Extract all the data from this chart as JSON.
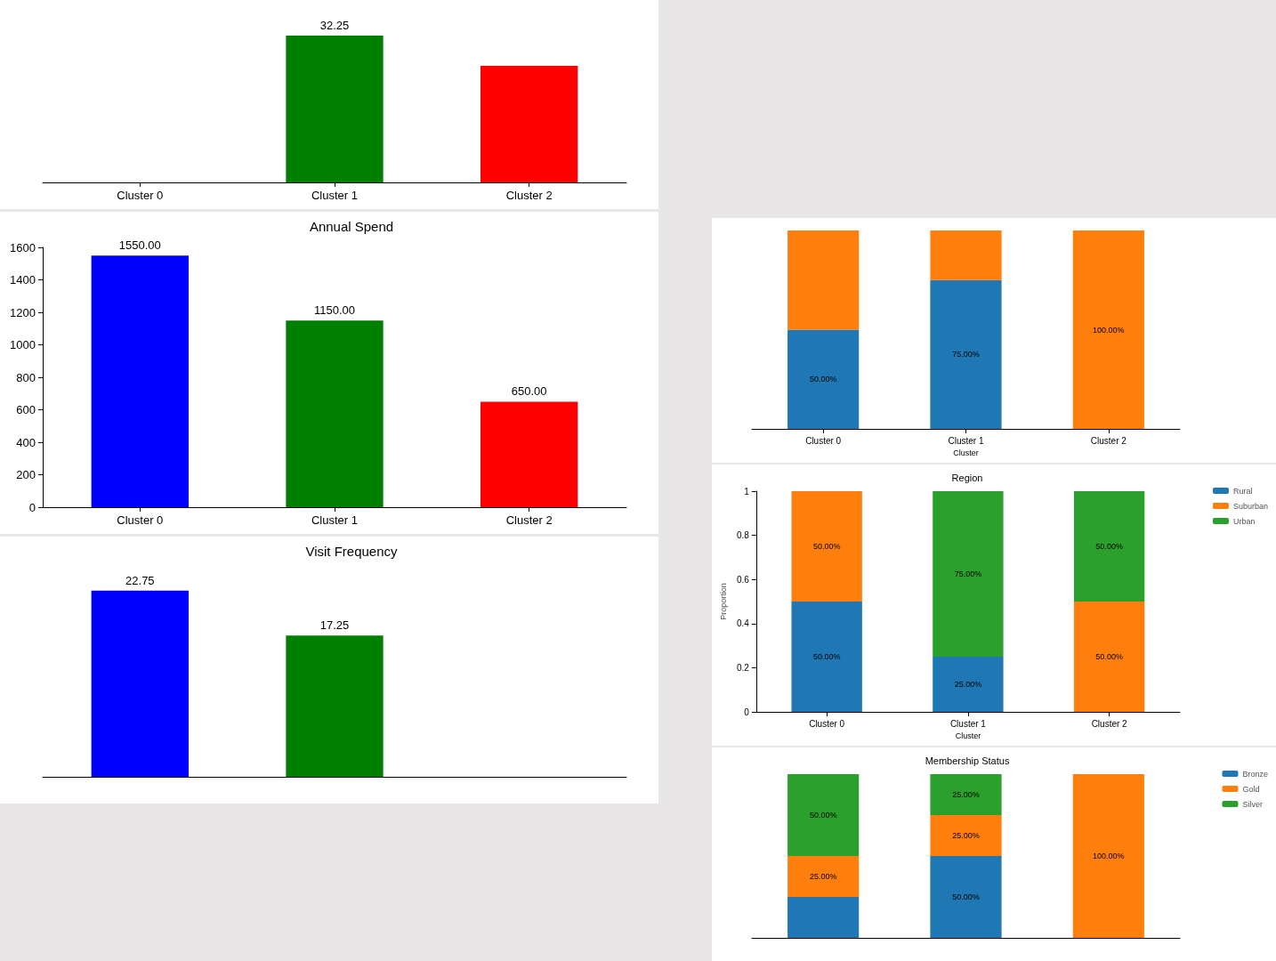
{
  "chart_data": [
    {
      "type": "bar",
      "categories": [
        "Cluster 0",
        "Cluster 1",
        "Cluster 2"
      ],
      "series": [
        {
          "colors": [
            "#0000ff",
            "#008000",
            "#ff0000"
          ],
          "values": [
            null,
            32.25,
            25.6
          ],
          "value_labels": [
            null,
            "32.25",
            null
          ]
        }
      ],
      "tick_labels": "x",
      "grid": false,
      "legend": false
    },
    {
      "type": "bar",
      "title": "Annual Spend",
      "categories": [
        "Cluster 0",
        "Cluster 1",
        "Cluster 2"
      ],
      "series": [
        {
          "colors": [
            "#0000ff",
            "#008000",
            "#ff0000"
          ],
          "values": [
            1550,
            1150,
            650
          ],
          "value_labels": [
            "1550.00",
            "1150.00",
            "650.00"
          ]
        }
      ],
      "ylim": [
        0,
        1600
      ],
      "yticks": [
        0,
        200,
        400,
        600,
        800,
        1000,
        1200,
        1400,
        1600
      ],
      "grid": false,
      "legend": false
    },
    {
      "type": "bar",
      "title": "Visit Frequency",
      "categories": [
        null,
        null,
        null
      ],
      "series": [
        {
          "colors": [
            "#0000ff",
            "#008000",
            "#ff0000"
          ],
          "values": [
            22.75,
            17.25,
            null
          ],
          "value_labels": [
            "22.75",
            "17.25",
            null
          ]
        }
      ],
      "tick_labels": false,
      "grid": false,
      "legend": false
    },
    {
      "type": "bar",
      "stacked": true,
      "xlabel": "Cluster",
      "categories": [
        "Cluster 0",
        "Cluster 1",
        "Cluster 2"
      ],
      "series": [
        {
          "color": "#1f77b4",
          "values": [
            0.5,
            0.75,
            0
          ],
          "value_labels": [
            "50.00%",
            "75.00%",
            null
          ]
        },
        {
          "color": "#ff7f0e",
          "values": [
            0.5,
            0.25,
            1
          ],
          "value_labels": [
            null,
            null,
            "100.00%"
          ]
        }
      ],
      "tick_labels": "x",
      "grid": false,
      "legend": false
    },
    {
      "type": "bar",
      "stacked": true,
      "title": "Region",
      "xlabel": "Cluster",
      "ylabel": "Proportion",
      "categories": [
        "Cluster 0",
        "Cluster 1",
        "Cluster 2"
      ],
      "series": [
        {
          "name": "Rural",
          "color": "#1f77b4",
          "values": [
            0.5,
            0.25,
            0
          ],
          "value_labels": [
            "50.00%",
            "25.00%",
            null
          ]
        },
        {
          "name": "Suburban",
          "color": "#ff7f0e",
          "values": [
            0.5,
            0,
            0.5
          ],
          "value_labels": [
            "50.00%",
            null,
            "50.00%"
          ]
        },
        {
          "name": "Urban",
          "color": "#2ca02c",
          "values": [
            0,
            0.75,
            0.5
          ],
          "value_labels": [
            null,
            "75.00%",
            "50.00%"
          ]
        }
      ],
      "ylim": [
        0,
        1
      ],
      "yticks": [
        0,
        0.2,
        0.4,
        0.6,
        0.8,
        1.0
      ],
      "grid": false,
      "legend": "top right"
    },
    {
      "type": "bar",
      "stacked": true,
      "title": "Membership Status",
      "categories": [
        null,
        null,
        null
      ],
      "series": [
        {
          "name": "Bronze",
          "color": "#1f77b4",
          "values": [
            0.25,
            0.5,
            0
          ],
          "value_labels": [
            null,
            "50.00%",
            null
          ]
        },
        {
          "name": "Gold",
          "color": "#ff7f0e",
          "values": [
            0.25,
            0.25,
            1
          ],
          "value_labels": [
            "25.00%",
            "25.00%",
            "100.00%"
          ]
        },
        {
          "name": "Silver",
          "color": "#2ca02c",
          "values": [
            0.5,
            0.25,
            0
          ],
          "value_labels": [
            "50.00%",
            "25.00%",
            null
          ]
        }
      ],
      "tick_labels": false,
      "grid": false,
      "legend": "top right"
    }
  ]
}
